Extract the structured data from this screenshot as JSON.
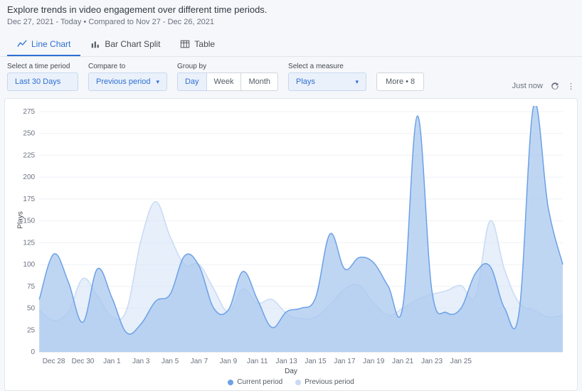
{
  "header": {
    "title": "Explore trends in video engagement over different time periods.",
    "date_range": "Dec 27, 2021 - Today  •  Compared to Nov 27 - Dec 26, 2021"
  },
  "tabs": [
    {
      "label": "Line Chart",
      "active": true
    },
    {
      "label": "Bar Chart Split",
      "active": false
    },
    {
      "label": "Table",
      "active": false
    }
  ],
  "controls": {
    "time_period": {
      "label": "Select a time period",
      "value": "Last 30 Days"
    },
    "compare_to": {
      "label": "Compare to",
      "value": "Previous period"
    },
    "group_by": {
      "label": "Group by",
      "options": [
        "Day",
        "Week",
        "Month"
      ],
      "selected": "Day"
    },
    "measure": {
      "label": "Select a measure",
      "value": "Plays"
    },
    "more": {
      "label": "More • 8"
    },
    "status": {
      "text": "Just now"
    }
  },
  "chart": {
    "type": "area",
    "y_axis_label": "Plays",
    "x_axis_label": "Day",
    "ylim": [
      0,
      275
    ],
    "ytick_step": 25,
    "y_tick_fontsize": 10,
    "x_tick_fontsize": 10,
    "x_labels": [
      "Dec 28",
      "Dec 30",
      "Jan 1",
      "Jan 3",
      "Jan 5",
      "Jan 7",
      "Jan 9",
      "Jan 11",
      "Jan 13",
      "Jan 15",
      "Jan 17",
      "Jan 19",
      "Jan 21",
      "Jan 23",
      "Jan 25"
    ],
    "x_label_every": 2,
    "background_color": "#ffffff",
    "grid_color": "#eef1f5",
    "line_width": 1.5,
    "series": [
      {
        "name": "Current period",
        "stroke": "#6ca1e6",
        "fill": "#a9c8ef",
        "fill_opacity": 0.75,
        "values": [
          60,
          112,
          80,
          34,
          95,
          62,
          22,
          32,
          58,
          66,
          110,
          98,
          50,
          48,
          92,
          60,
          28,
          46,
          50,
          62,
          135,
          95,
          108,
          102,
          75,
          52,
          270,
          70,
          45,
          50,
          90,
          98,
          50,
          46,
          282,
          165,
          100
        ]
      },
      {
        "name": "Previous period",
        "stroke": "#c9dbf3",
        "fill": "#d9e6f8",
        "fill_opacity": 0.65,
        "values": [
          48,
          36,
          46,
          84,
          64,
          40,
          48,
          128,
          172,
          132,
          100,
          100,
          72,
          46,
          72,
          56,
          60,
          44,
          38,
          40,
          54,
          72,
          76,
          56,
          42,
          50,
          60,
          66,
          70,
          76,
          64,
          150,
          94,
          56,
          48,
          40,
          42
        ]
      }
    ],
    "legend_items": [
      {
        "label": "Current period",
        "color": "#6ca1e6"
      },
      {
        "label": "Previous period",
        "color": "#c9dbf3"
      }
    ]
  },
  "colors": {
    "accent": "#2f6fd3",
    "panel_bg": "#f5f7fa",
    "dropdown_bg": "#eaf1fb",
    "border": "#d2d7de"
  }
}
